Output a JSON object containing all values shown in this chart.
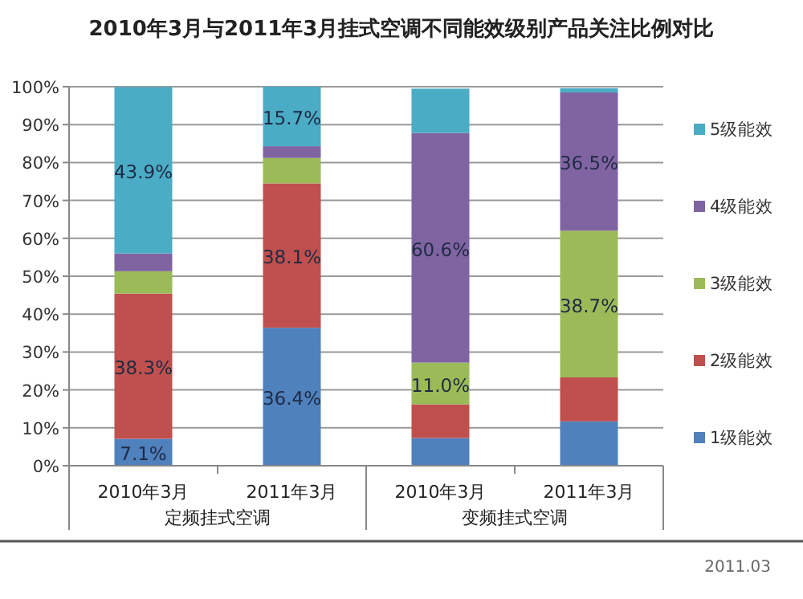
{
  "chart_data": {
    "type": "bar",
    "stacked": true,
    "title": "2010年3月与2011年3月挂式空调不同能效级别产品关注比例对比",
    "categories": [
      "2010年3月",
      "2011年3月",
      "2010年3月",
      "2011年3月"
    ],
    "series": [
      {
        "name": "1级能效",
        "color": "#4f81bd",
        "values": [
          7.1,
          36.4,
          7.3,
          11.7
        ],
        "value_labels": [
          "7.1%",
          "36.4%",
          null,
          null
        ]
      },
      {
        "name": "2级能效",
        "color": "#c0504d",
        "values": [
          38.3,
          38.1,
          8.9,
          11.6
        ],
        "value_labels": [
          "38.3%",
          "38.1%",
          null,
          null
        ]
      },
      {
        "name": "3级能效",
        "color": "#9bbb59",
        "values": [
          5.9,
          6.7,
          11.0,
          38.7
        ],
        "value_labels": [
          null,
          null,
          "11.0%",
          "38.7%"
        ]
      },
      {
        "name": "4级能效",
        "color": "#8064a2",
        "values": [
          4.7,
          3.1,
          60.6,
          36.5
        ],
        "value_labels": [
          null,
          null,
          "60.6%",
          "36.5%"
        ]
      },
      {
        "name": "5级能效",
        "color": "#4bacc6",
        "values": [
          43.9,
          15.7,
          11.7,
          1.1
        ],
        "value_labels": [
          "43.9%",
          "15.7%",
          null,
          null
        ]
      }
    ],
    "ylim": [
      0,
      100
    ],
    "yticks": [
      {
        "value": 0,
        "label": "0%"
      },
      {
        "value": 10,
        "label": "10%"
      },
      {
        "value": 20,
        "label": "20%"
      },
      {
        "value": 30,
        "label": "30%"
      },
      {
        "value": 40,
        "label": "40%"
      },
      {
        "value": 50,
        "label": "50%"
      },
      {
        "value": 60,
        "label": "60%"
      },
      {
        "value": 70,
        "label": "70%"
      },
      {
        "value": 80,
        "label": "80%"
      },
      {
        "value": 90,
        "label": "90%"
      },
      {
        "value": 100,
        "label": "100%"
      }
    ],
    "grid": "y",
    "legend": "right",
    "annotations": [
      "定频挂式空调",
      "变频挂式空调",
      "2011.03"
    ]
  }
}
